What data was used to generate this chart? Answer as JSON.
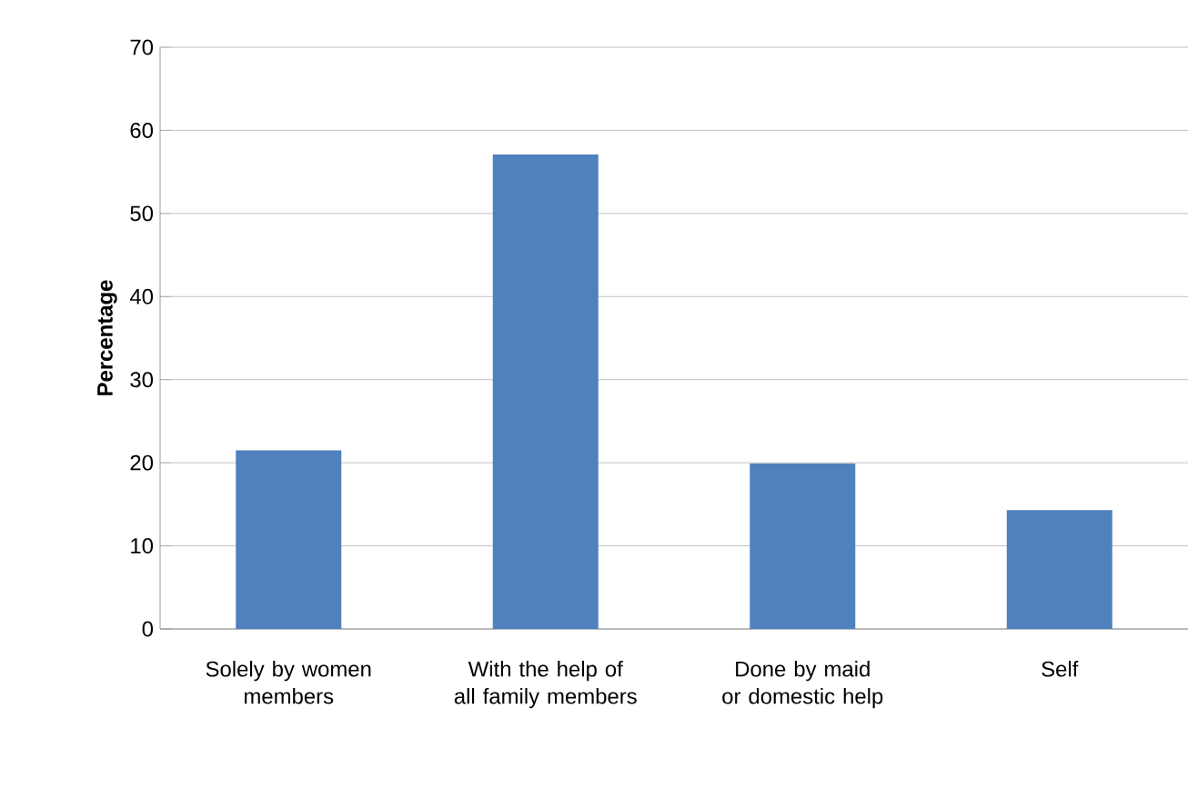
{
  "chart_data": {
    "type": "bar",
    "ylabel": "Percentage",
    "categories": [
      "Solely by women members",
      "With the help of all family members",
      "Done by maid or domestic help",
      "Self"
    ],
    "values": [
      21.5,
      57.1,
      19.9,
      14.3
    ],
    "color": "#4f81bd",
    "ylim": [
      0,
      70
    ],
    "yticks": [
      0,
      10,
      20,
      30,
      40,
      50,
      60,
      70
    ],
    "grid": "y"
  }
}
